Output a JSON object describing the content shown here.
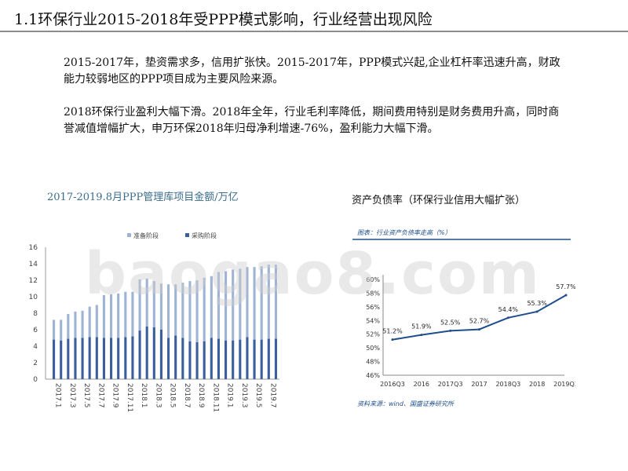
{
  "slide": {
    "title": "1.1环保行业2015-2018年受PPP模式影响，行业经营出现风险",
    "paragraphs": [
      "2015-2017年，垫资需求多，信用扩张快。2015-2017年，PPP模式兴起,企业杠杆率迅速升高，财政能力较弱地区的PPP项目成为主要风险来源。",
      "2018环保行业盈利大幅下滑。2018年全年，行业毛利率降低，期间费用特别是财务费用升高，同时商誉减值增幅扩大，申万环保2018年归母净利增速-76%，盈利能力大幅下滑。"
    ]
  },
  "charts_titles": {
    "left": "2017-2019.8月PPP管理库项目金额/万亿",
    "right": "资产负债率（环保行业信用大幅扩张）"
  },
  "watermark": "baogao8.com",
  "chart_data": [
    {
      "type": "bar",
      "stacked": true,
      "categories": [
        "2017.1",
        "2017.2",
        "2017.3",
        "2017.4",
        "2017.5",
        "2017.6",
        "2017.7",
        "2017.8",
        "2017.9",
        "2017.10",
        "2017.11",
        "2017.12",
        "2018.1",
        "2018.2",
        "2018.3",
        "2018.4",
        "2018.5",
        "2018.6",
        "2018.7",
        "2018.8",
        "2018.9",
        "2018.10",
        "2018.11",
        "2018.12",
        "2019.1",
        "2019.2",
        "2019.3",
        "2019.4",
        "2019.5",
        "2019.6",
        "2019.7",
        "2019.8"
      ],
      "tick_labels": [
        "2017.1",
        "2017.3",
        "2017.5",
        "2017.7",
        "2017.9",
        "2017.11",
        "2018.1",
        "2018.3",
        "2018.5",
        "2018.7",
        "2018.9",
        "2018.11",
        "2019.1",
        "2019.3",
        "2019.5",
        "2019.7"
      ],
      "series": [
        {
          "name": "准备阶段",
          "color": "#9fb3d4",
          "values": [
            2.4,
            2.5,
            3.0,
            3.2,
            3.3,
            3.7,
            3.9,
            5.2,
            5.3,
            5.4,
            5.5,
            5.4,
            6.2,
            5.8,
            5.6,
            5.6,
            6.5,
            6.2,
            6.7,
            7.3,
            7.5,
            7.7,
            7.5,
            8.1,
            8.4,
            8.6,
            8.6,
            8.5,
            8.8,
            8.9,
            9.0,
            9.0
          ]
        },
        {
          "name": "采购阶段",
          "color": "#3b5f9e",
          "values": [
            4.8,
            4.7,
            4.9,
            5.0,
            5.0,
            5.1,
            5.1,
            5.0,
            5.0,
            5.0,
            5.1,
            5.2,
            5.9,
            6.4,
            6.3,
            6.0,
            5.0,
            5.3,
            5.0,
            4.6,
            4.5,
            4.6,
            5.0,
            4.9,
            4.7,
            4.7,
            4.8,
            5.1,
            4.8,
            4.8,
            4.9,
            4.9
          ]
        }
      ],
      "ylim": [
        0,
        16
      ],
      "yticks": [
        0,
        2,
        4,
        6,
        8,
        10,
        12,
        14,
        16
      ],
      "legend": "top-center",
      "grid": false
    },
    {
      "type": "line",
      "inner_title": "图表：行业资产负债率走高（%）",
      "source": "资料来源：wind、国盛证券研究所",
      "categories": [
        "2016Q3",
        "2016",
        "2017Q3",
        "2017",
        "2018Q3",
        "2018",
        "2019Q3"
      ],
      "series": [
        {
          "color": "#1f4e8c",
          "values": [
            51.2,
            51.9,
            52.5,
            52.7,
            54.4,
            55.3,
            57.7
          ]
        }
      ],
      "data_labels": [
        "51.2%",
        "51.9%",
        "52.5%",
        "52.7%",
        "54.4%",
        "55.3%",
        "57.7%"
      ],
      "ylim": [
        46,
        60
      ],
      "yticks": [
        46,
        48,
        50,
        52,
        54,
        56,
        58,
        60
      ],
      "ytick_labels": [
        "46%",
        "48%",
        "50%",
        "52%",
        "54%",
        "56%",
        "58%",
        "60%"
      ],
      "grid": false
    }
  ]
}
